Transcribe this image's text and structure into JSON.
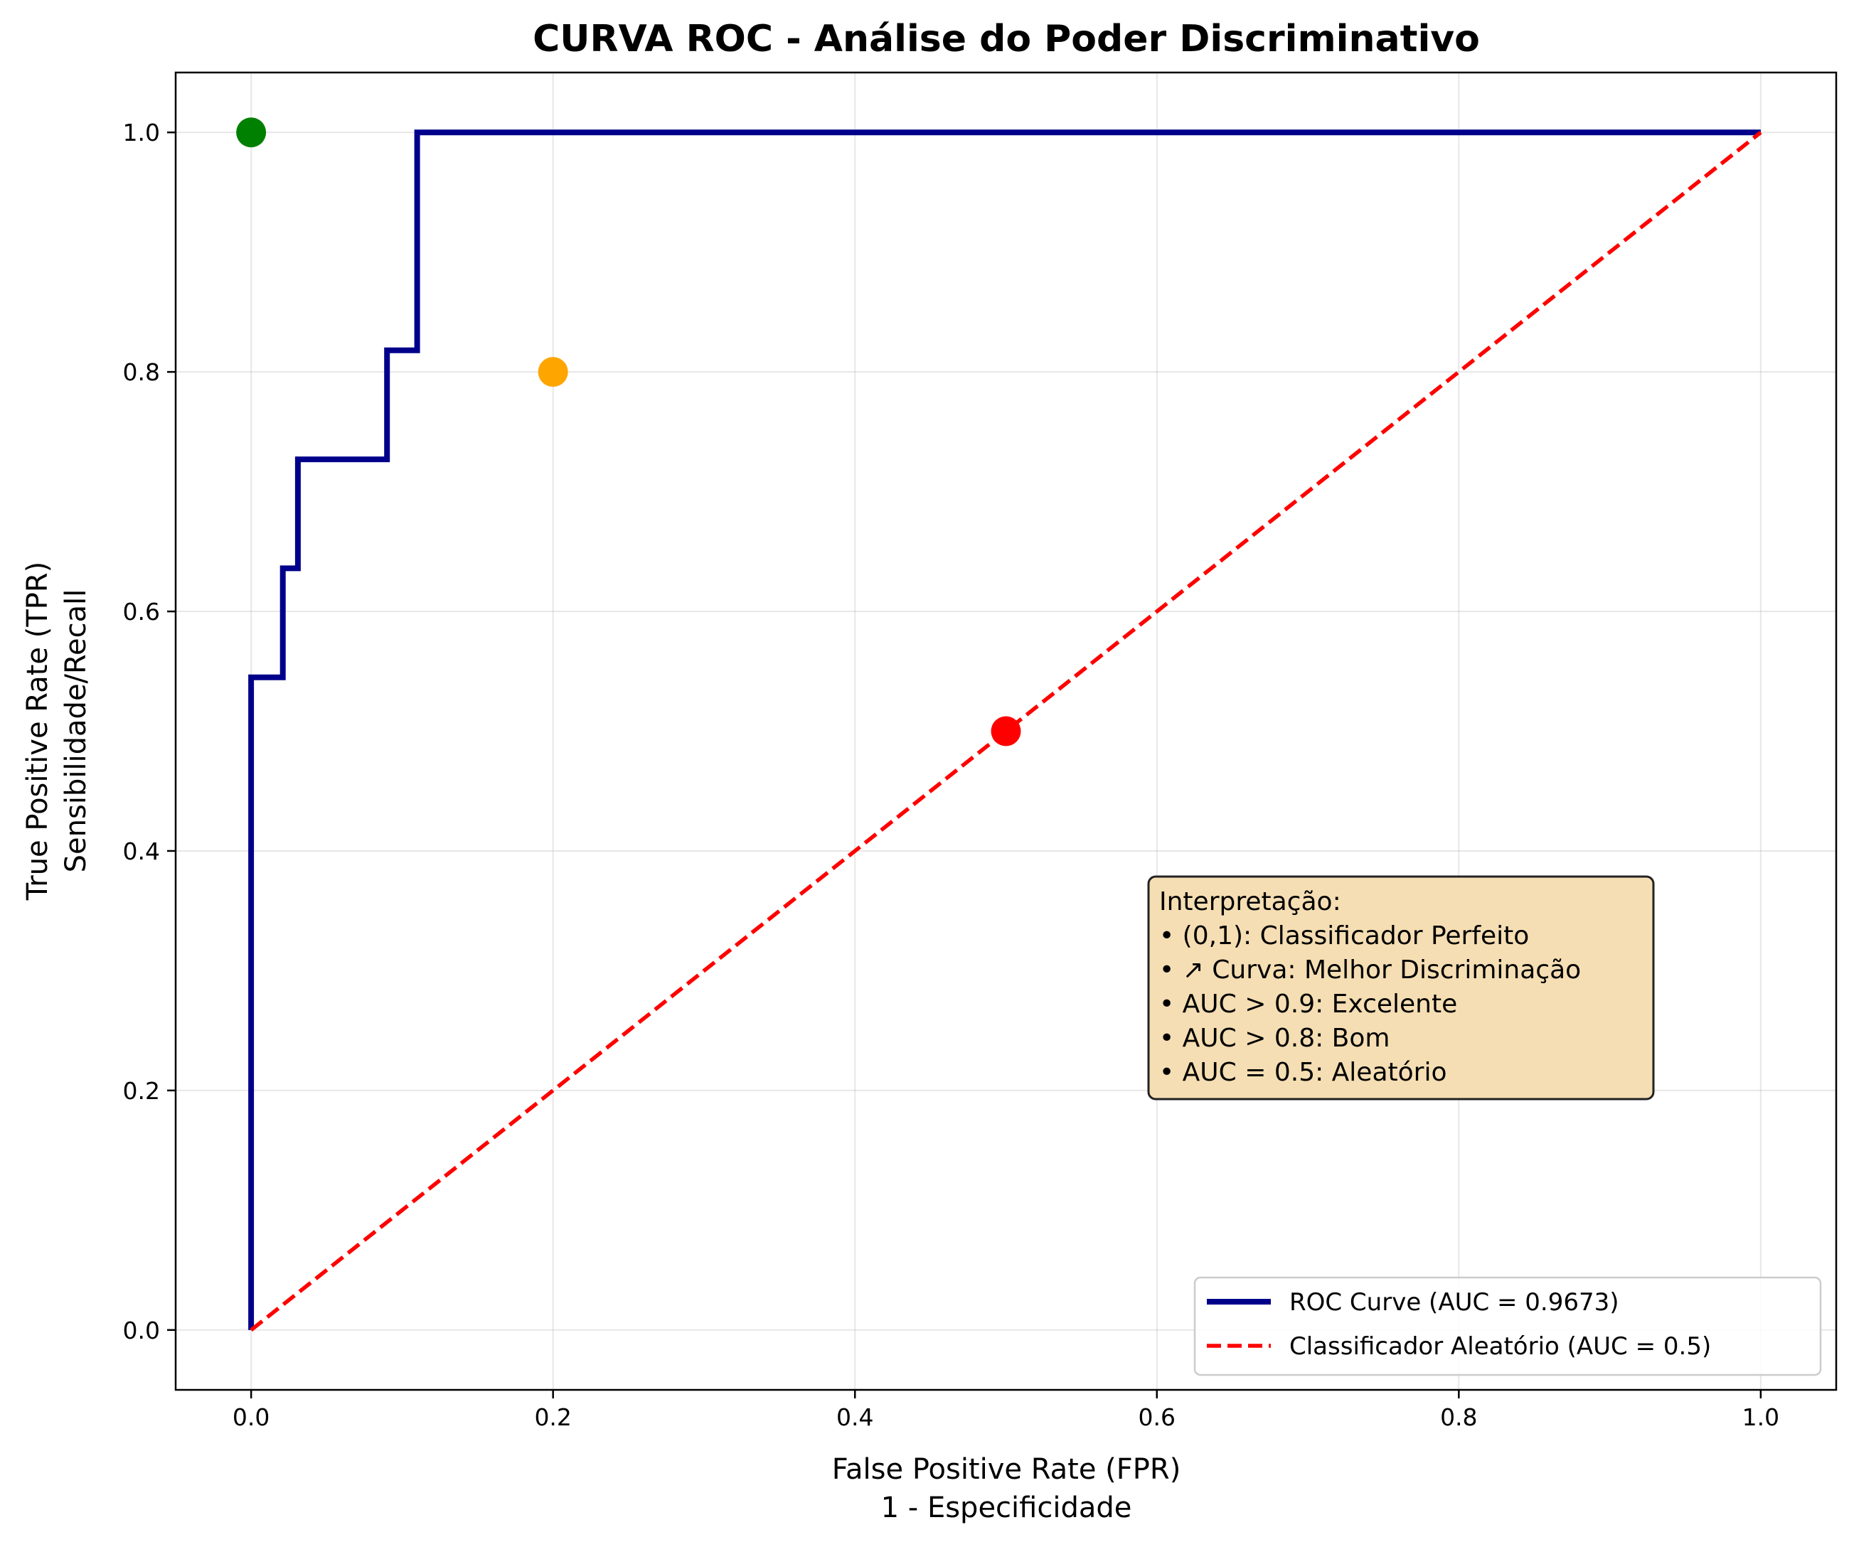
{
  "chart_data": {
    "type": "line",
    "title": "CURVA ROC - Análise do Poder Discriminativo",
    "xlabel_lines": [
      "False Positive Rate (FPR)",
      "1 - Especificidade"
    ],
    "ylabel_lines": [
      "True Positive Rate (TPR)",
      "Sensibilidade/Recall"
    ],
    "xlim": [
      -0.05,
      1.05
    ],
    "ylim": [
      -0.05,
      1.05
    ],
    "xticks": [
      0.0,
      0.2,
      0.4,
      0.6,
      0.8,
      1.0
    ],
    "yticks": [
      0.0,
      0.2,
      0.4,
      0.6,
      0.8,
      1.0
    ],
    "xtick_labels": [
      "0.0",
      "0.2",
      "0.4",
      "0.6",
      "0.8",
      "1.0"
    ],
    "ytick_labels": [
      "0.0",
      "0.2",
      "0.4",
      "0.6",
      "0.8",
      "1.0"
    ],
    "grid": true,
    "legend_position": "lower-right",
    "series": [
      {
        "name": "ROC Curve (AUC = 0.9673)",
        "color": "#00008B",
        "style": "solid",
        "x": [
          0.0,
          0.0,
          0.021,
          0.021,
          0.031,
          0.031,
          0.09,
          0.09,
          0.11,
          0.11,
          1.0
        ],
        "y": [
          0.0,
          0.545,
          0.545,
          0.636,
          0.636,
          0.727,
          0.727,
          0.818,
          0.818,
          1.0,
          1.0
        ]
      },
      {
        "name": "Classificador Aleatório (AUC = 0.5)",
        "color": "#ff0000",
        "style": "dashed",
        "x": [
          0.0,
          1.0
        ],
        "y": [
          0.0,
          1.0
        ]
      }
    ],
    "points": [
      {
        "x": 0.0,
        "y": 1.0,
        "color": "#008000"
      },
      {
        "x": 0.2,
        "y": 0.8,
        "color": "#FFA500"
      },
      {
        "x": 0.5,
        "y": 0.5,
        "color": "#ff0000"
      }
    ],
    "annotation": {
      "lines": [
        "Interpretação:",
        "• (0,1): Classificador Perfeito",
        "• ↗ Curva: Melhor Discriminação",
        "• AUC > 0.9: Excelente",
        "• AUC > 0.8: Bom",
        "• AUC = 0.5: Aleatório"
      ],
      "background": "#F5DEB3"
    }
  }
}
